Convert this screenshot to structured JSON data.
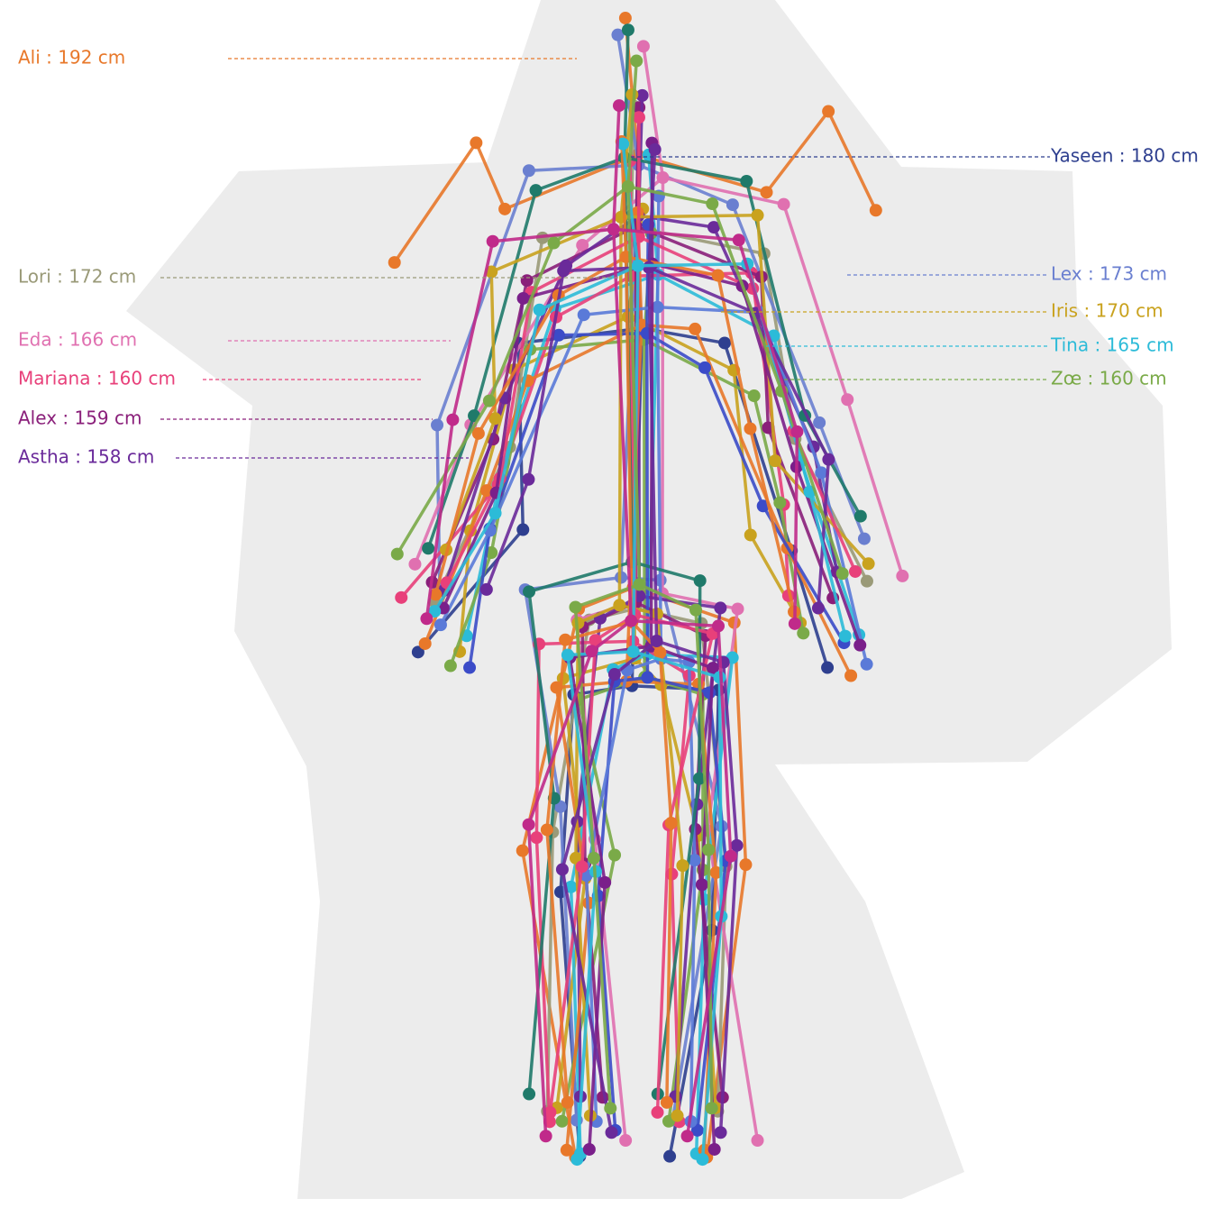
{
  "labels": [
    {
      "text": "Ali : 192 cm",
      "color": "#e8782a"
    },
    {
      "text": "Yaseen : 180 cm",
      "color": "#2e3f8f"
    },
    {
      "text": "Lori : 172 cm",
      "color": "#9a9a78"
    },
    {
      "text": "Lex : 173 cm",
      "color": "#6a7fd0"
    },
    {
      "text": "Iris : 170 cm",
      "color": "#c9a21e"
    },
    {
      "text": "Eda : 166 cm",
      "color": "#e070b0"
    },
    {
      "text": "Tina : 165 cm",
      "color": "#2cbbd8"
    },
    {
      "text": "Mariana : 160 cm",
      "color": "#e8407a"
    },
    {
      "text": "Zœ : 160 cm",
      "color": "#7aaa48"
    },
    {
      "text": "Alex : 159 cm",
      "color": "#8a1f7a"
    },
    {
      "text": "Astha : 158 cm",
      "color": "#6a2a9a"
    }
  ]
}
